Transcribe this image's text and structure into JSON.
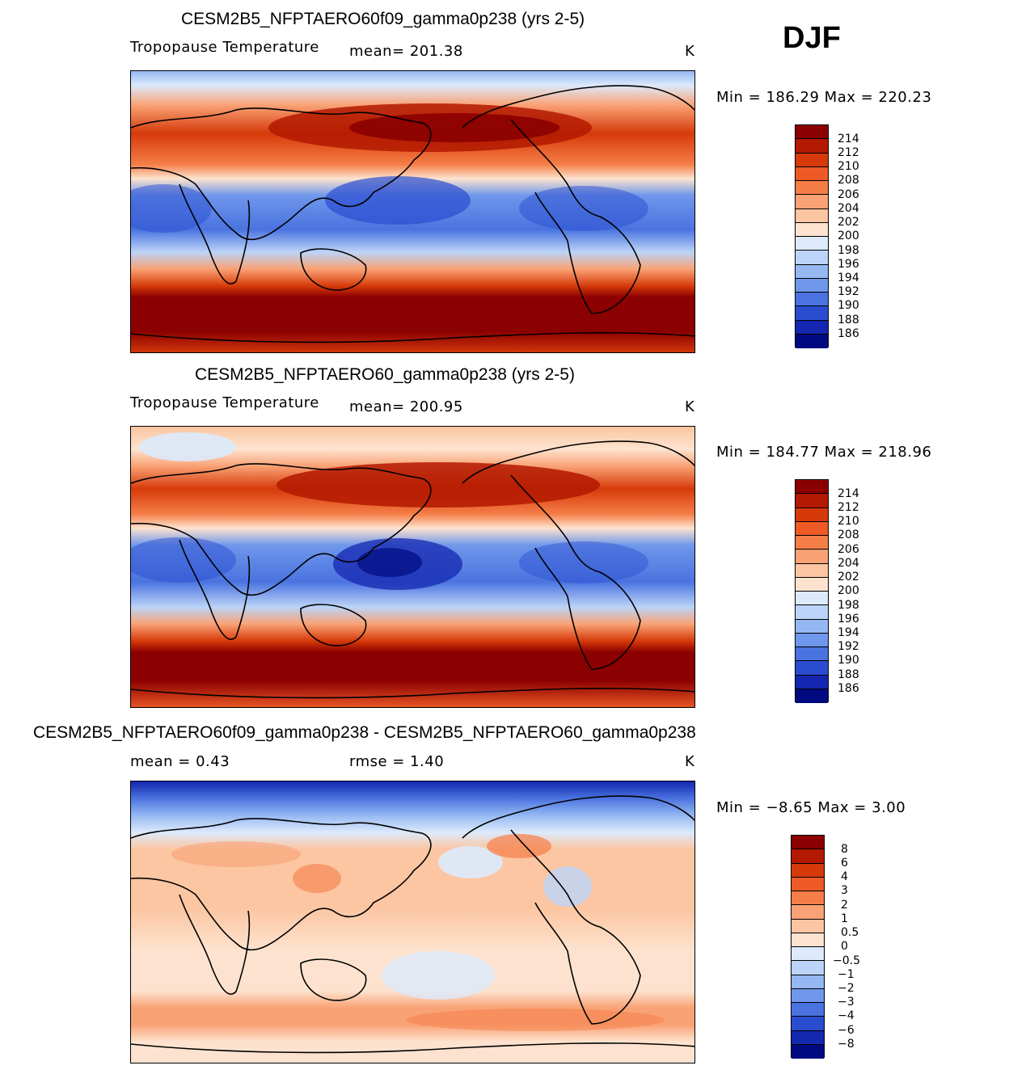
{
  "season": "DJF",
  "panels": [
    {
      "title": "CESM2B5_NFPTAERO60f09_gamma0p238 (yrs 2-5)",
      "variable": "Tropopause Temperature",
      "stat": "mean= 201.38",
      "units": "K",
      "range": "Min = 186.29 Max = 220.23",
      "colorbar_labels": [
        "214",
        "212",
        "210",
        "208",
        "206",
        "204",
        "202",
        "200",
        "198",
        "196",
        "194",
        "192",
        "190",
        "188",
        "186"
      ]
    },
    {
      "title": "CESM2B5_NFPTAERO60_gamma0p238 (yrs 2-5)",
      "variable": "Tropopause Temperature",
      "stat": "mean= 200.95",
      "units": "K",
      "range": "Min = 184.77 Max = 218.96",
      "colorbar_labels": [
        "214",
        "212",
        "210",
        "208",
        "206",
        "204",
        "202",
        "200",
        "198",
        "196",
        "194",
        "192",
        "190",
        "188",
        "186"
      ]
    },
    {
      "title": "CESM2B5_NFPTAERO60f09_gamma0p238 - CESM2B5_NFPTAERO60_gamma0p238",
      "stat_mean": "mean =    0.43",
      "stat_rmse": "rmse =    1.40",
      "units": "K",
      "range": "Min =   −8.65 Max =     3.00",
      "colorbar_labels": [
        "8",
        "6",
        "4",
        "3",
        "2",
        "1",
        "0.5",
        "0",
        "−0.5",
        "−1",
        "−2",
        "−3",
        "−4",
        "−6",
        "−8"
      ]
    }
  ],
  "colors": {
    "abs_scale": [
      "#8b0000",
      "#b31900",
      "#d63a0a",
      "#ed5a25",
      "#f57e48",
      "#f9a275",
      "#fcc6a2",
      "#fde3cf",
      "#dceafb",
      "#bcd4f7",
      "#95b8f2",
      "#6f97eb",
      "#4a73e0",
      "#2a4dd0",
      "#1427b0",
      "#000a80"
    ],
    "diff_scale": [
      "#8b0000",
      "#b31900",
      "#d63a0a",
      "#ed5a25",
      "#f57e48",
      "#f9a275",
      "#fcc6a2",
      "#fde3cf",
      "#dceafb",
      "#bcd4f7",
      "#95b8f2",
      "#6f97eb",
      "#4a73e0",
      "#2a4dd0",
      "#1427b0",
      "#000a80"
    ]
  }
}
